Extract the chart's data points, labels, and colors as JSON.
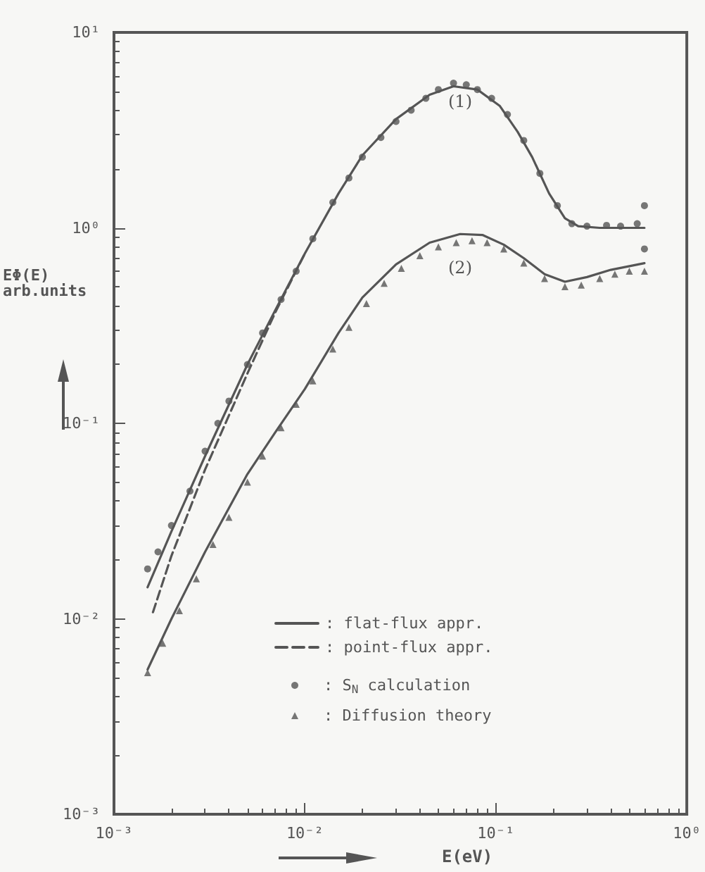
{
  "chart_data": {
    "type": "line",
    "xlabel": "E(eV)",
    "ylabel": "EΦ(E)\narb.units",
    "log": "xy",
    "grid": false,
    "legend": "bottom right",
    "xlim": [
      0.001,
      1
    ],
    "xticks": [
      {
        "value": 0.001,
        "label": "10⁻³"
      },
      {
        "value": 0.01,
        "label": "10⁻²"
      },
      {
        "value": 0.1,
        "label": "10⁻¹"
      },
      {
        "value": 1,
        "label": "10⁰"
      }
    ],
    "ylim": [
      0.001,
      10
    ],
    "yticks": [
      {
        "value": 0.001,
        "label": "10⁻³"
      },
      {
        "value": 0.01,
        "label": "10⁻²"
      },
      {
        "value": 0.1,
        "label": "10⁻¹"
      },
      {
        "value": 1,
        "label": "10⁰"
      },
      {
        "value": 10,
        "label": "10¹"
      }
    ],
    "annotations": [
      "(1)",
      "(2)"
    ],
    "series": [
      {
        "name": ": flat-flux appr.",
        "line_style": "solid",
        "marker": "none",
        "color": "#555555",
        "x": [
          0.0015,
          0.002,
          0.003,
          0.005,
          0.007,
          0.01,
          0.015,
          0.02,
          0.03,
          0.045,
          0.06,
          0.08,
          0.105,
          0.13,
          0.155,
          0.19,
          0.23,
          0.27,
          0.35,
          0.6
        ],
        "values": [
          0.0145,
          0.028,
          0.068,
          0.2,
          0.38,
          0.74,
          1.5,
          2.35,
          3.6,
          4.8,
          5.3,
          5.1,
          4.2,
          3.1,
          2.3,
          1.5,
          1.12,
          1.02,
          1.0,
          1.0
        ]
      },
      {
        "name": ": point-flux appr.",
        "line_style": "dashed",
        "marker": "none",
        "color": "#555555",
        "x": [
          0.0016,
          0.002,
          0.003,
          0.005,
          0.007,
          0.01
        ],
        "values": [
          0.0108,
          0.021,
          0.058,
          0.18,
          0.37,
          0.74
        ]
      },
      {
        "name": ": S$_{N}$ calculation",
        "type": "scatter",
        "marker": "circle",
        "color": "#555555",
        "x": [
          0.0015,
          0.0017,
          0.002,
          0.0025,
          0.003,
          0.0035,
          0.004,
          0.005,
          0.006,
          0.0075,
          0.009,
          0.011,
          0.014,
          0.017,
          0.02,
          0.025,
          0.03,
          0.036,
          0.043,
          0.05,
          0.06,
          0.07,
          0.08,
          0.095,
          0.115,
          0.14,
          0.17,
          0.21,
          0.25,
          0.3,
          0.38,
          0.45,
          0.55,
          0.6,
          0.6
        ],
        "values": [
          0.018,
          0.022,
          0.03,
          0.045,
          0.072,
          0.1,
          0.13,
          0.2,
          0.29,
          0.43,
          0.6,
          0.88,
          1.35,
          1.8,
          2.3,
          2.9,
          3.5,
          4.0,
          4.6,
          5.1,
          5.5,
          5.4,
          5.1,
          4.6,
          3.8,
          2.8,
          1.9,
          1.3,
          1.05,
          1.02,
          1.03,
          1.02,
          1.05,
          1.3,
          0.78
        ]
      },
      {
        "name": ": Diffusion theory",
        "type": "scatter",
        "marker": "triangle",
        "color": "#555555",
        "x": [
          0.0015,
          0.0018,
          0.0022,
          0.0027,
          0.0033,
          0.004,
          0.005,
          0.006,
          0.0075,
          0.009,
          0.011,
          0.014,
          0.017,
          0.021,
          0.026,
          0.032,
          0.04,
          0.05,
          0.062,
          0.075,
          0.09,
          0.11,
          0.14,
          0.18,
          0.23,
          0.28,
          0.35,
          0.42,
          0.5,
          0.6
        ],
        "values": [
          0.0053,
          0.0075,
          0.011,
          0.016,
          0.024,
          0.033,
          0.05,
          0.068,
          0.095,
          0.125,
          0.165,
          0.24,
          0.31,
          0.41,
          0.52,
          0.62,
          0.72,
          0.8,
          0.84,
          0.86,
          0.84,
          0.78,
          0.66,
          0.55,
          0.5,
          0.51,
          0.55,
          0.58,
          0.6,
          0.6
        ]
      },
      {
        "line_style": "solid",
        "marker": "none",
        "color": "#555555",
        "x": [
          0.0015,
          0.002,
          0.003,
          0.005,
          0.007,
          0.01,
          0.015,
          0.02,
          0.03,
          0.045,
          0.065,
          0.085,
          0.11,
          0.14,
          0.18,
          0.23,
          0.3,
          0.4,
          0.6
        ],
        "values": [
          0.0055,
          0.01,
          0.022,
          0.055,
          0.09,
          0.15,
          0.29,
          0.44,
          0.65,
          0.84,
          0.93,
          0.92,
          0.82,
          0.7,
          0.58,
          0.53,
          0.56,
          0.61,
          0.66
        ]
      }
    ]
  }
}
